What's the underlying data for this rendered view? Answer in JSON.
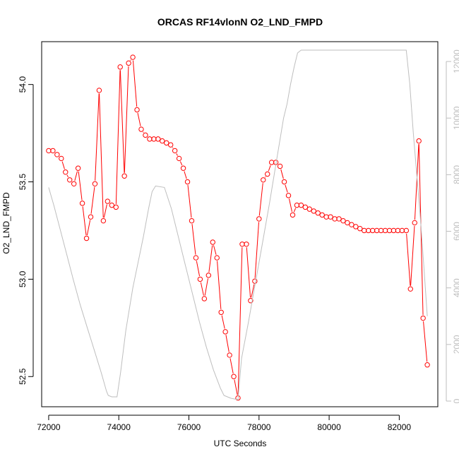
{
  "chart_data": {
    "type": "line",
    "title": "ORCAS RF14vlonN O2_LND_FMPD",
    "xlabel": "UTC Seconds",
    "ylabel": "O2_LND_FMPD",
    "y2label": "",
    "xlim": [
      71800,
      83100
    ],
    "ylim": [
      52.345,
      54.22
    ],
    "y2lim": [
      -200,
      12700
    ],
    "x_ticks": [
      72000,
      74000,
      76000,
      78000,
      80000,
      82000
    ],
    "y_ticks": [
      52.5,
      53.0,
      53.5,
      54.0
    ],
    "y_tick_labels": [
      "52.5",
      "53.0",
      "53.5",
      "54.0"
    ],
    "y2_ticks": [
      0,
      2000,
      4000,
      6000,
      8000,
      10000,
      12000
    ],
    "colors": {
      "primary": "#ff0000",
      "secondary": "#bebebe",
      "axis": "#000000"
    },
    "grid": false,
    "series": [
      {
        "role": "primary",
        "axis": "left",
        "style": "line+circle-markers",
        "color": "#ff0000",
        "x": [
          72000,
          72120,
          72240,
          72360,
          72480,
          72600,
          72720,
          72840,
          72960,
          73080,
          73200,
          73320,
          73440,
          73560,
          73680,
          73800,
          73920,
          74040,
          74160,
          74280,
          74400,
          74520,
          74640,
          74760,
          74880,
          75000,
          75120,
          75240,
          75360,
          75480,
          75600,
          75720,
          75840,
          75960,
          76080,
          76200,
          76320,
          76440,
          76560,
          76680,
          76800,
          76920,
          77040,
          77160,
          77280,
          77400,
          77520,
          77640,
          77760,
          77880,
          78000,
          78120,
          78240,
          78360,
          78480,
          78600,
          78720,
          78840,
          78960,
          79080,
          79200,
          79320,
          79440,
          79560,
          79680,
          79800,
          79920,
          80040,
          80160,
          80280,
          80400,
          80520,
          80640,
          80760,
          80880,
          81000,
          81120,
          81240,
          81360,
          81480,
          81600,
          81720,
          81840,
          81960,
          82080,
          82200,
          82320,
          82440,
          82560,
          82680,
          82800
        ],
        "y": [
          53.66,
          53.66,
          53.64,
          53.62,
          53.55,
          53.51,
          53.49,
          53.57,
          53.39,
          53.21,
          53.32,
          53.49,
          53.97,
          53.3,
          53.4,
          53.38,
          53.37,
          54.09,
          53.53,
          54.11,
          54.14,
          53.87,
          53.77,
          53.74,
          53.72,
          53.72,
          53.72,
          53.71,
          53.7,
          53.69,
          53.66,
          53.62,
          53.57,
          53.5,
          53.3,
          53.11,
          53.0,
          52.9,
          53.02,
          53.19,
          53.11,
          52.83,
          52.73,
          52.61,
          52.5,
          52.39,
          53.18,
          53.18,
          52.89,
          52.99,
          53.31,
          53.51,
          53.54,
          53.6,
          53.6,
          53.58,
          53.5,
          53.43,
          53.33,
          53.38,
          53.38,
          53.37,
          53.36,
          53.35,
          53.34,
          53.33,
          53.32,
          53.32,
          53.31,
          53.31,
          53.3,
          53.29,
          53.28,
          53.27,
          53.26,
          53.25,
          53.25,
          53.25,
          53.25,
          53.25,
          53.25,
          53.25,
          53.25,
          53.25,
          53.25,
          53.25,
          52.95,
          53.29,
          53.71,
          52.8,
          52.56
        ]
      },
      {
        "role": "secondary",
        "axis": "right",
        "style": "line",
        "color": "#bebebe",
        "x": [
          72000,
          72150,
          72300,
          72500,
          72700,
          72900,
          73100,
          73300,
          73500,
          73650,
          73700,
          73800,
          73950,
          74050,
          74200,
          74400,
          74700,
          74850,
          74950,
          75050,
          75300,
          75500,
          75700,
          75900,
          76100,
          76300,
          76500,
          76700,
          76900,
          77000,
          77100,
          77200,
          77400,
          77500,
          77700,
          77900,
          78100,
          78300,
          78500,
          78700,
          78800,
          78900,
          79000,
          79100,
          79200,
          79400,
          80000,
          81000,
          82000,
          82200,
          82300,
          82400,
          82500,
          82600,
          82700,
          82800
        ],
        "y": [
          7550,
          6900,
          6200,
          5250,
          4300,
          3400,
          2600,
          1800,
          1000,
          350,
          200,
          150,
          150,
          1000,
          2500,
          4000,
          5800,
          6800,
          7400,
          7600,
          7550,
          6800,
          5800,
          4800,
          3800,
          2800,
          1900,
          1100,
          450,
          200,
          150,
          100,
          50,
          1500,
          2800,
          4200,
          5600,
          7000,
          8500,
          10000,
          10500,
          11200,
          11800,
          12300,
          12400,
          12400,
          12400,
          12400,
          12400,
          12400,
          11200,
          9500,
          8000,
          6500,
          4800,
          3000
        ]
      }
    ]
  }
}
